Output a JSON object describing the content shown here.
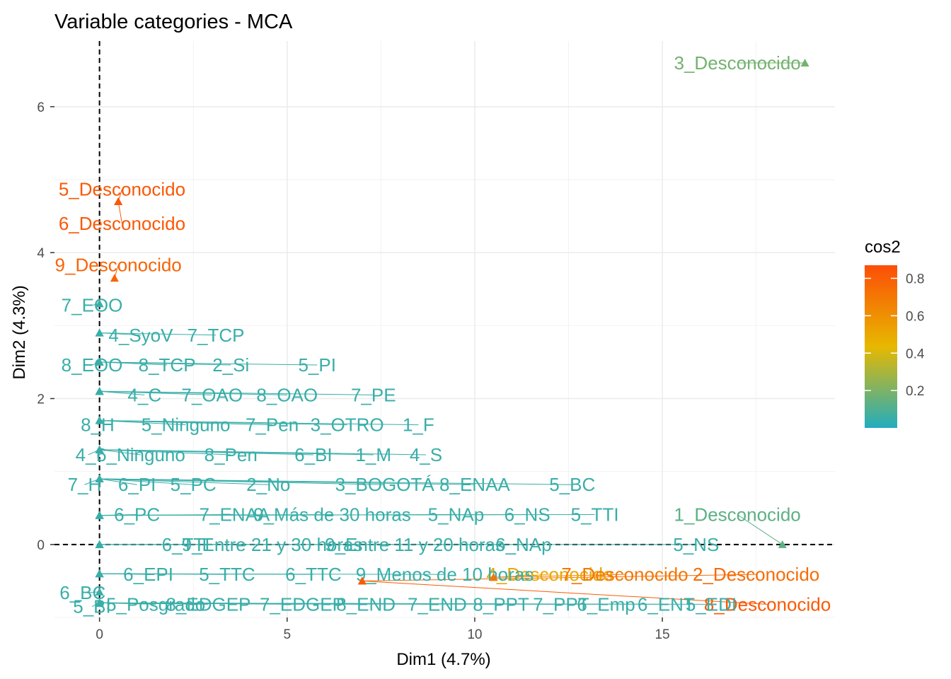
{
  "chart_data": {
    "type": "scatter",
    "title": "Variable categories - MCA",
    "xlabel": "Dim1 (4.7%)",
    "ylabel": "Dim2 (4.3%)",
    "xlim": [
      -1.2,
      19.6
    ],
    "ylim": [
      -1.0,
      6.9
    ],
    "x_ticks": [
      0,
      5,
      10,
      15
    ],
    "y_ticks": [
      0,
      2,
      4,
      6
    ],
    "grid": true,
    "reference_lines": {
      "x": 0,
      "y": 0,
      "style": "dashed"
    },
    "arrows": true,
    "legend": {
      "title": "cos2",
      "placement": "right",
      "range": [
        0.0,
        0.87
      ],
      "ticks": [
        0.2,
        0.4,
        0.6,
        0.8
      ],
      "colors": [
        "#22adbe",
        "#e7b800",
        "#fc4e07"
      ]
    },
    "points": [
      {
        "label": "3_Desconocido",
        "x": 18.8,
        "y": 6.6,
        "cos2": 0.18,
        "lx": 17.0,
        "ly": 6.6
      },
      {
        "label": "5_Desconocido",
        "x": 0.5,
        "y": 4.7,
        "cos2": 0.83,
        "lx": 0.6,
        "ly": 4.87
      },
      {
        "label": "6_Desconocido",
        "x": 0.5,
        "y": 4.7,
        "cos2": 0.83,
        "lx": 0.6,
        "ly": 4.4
      },
      {
        "label": "9_Desconocido",
        "x": 0.4,
        "y": 3.65,
        "cos2": 0.78,
        "lx": 0.5,
        "ly": 3.83
      },
      {
        "label": "1_Desconocido",
        "x": 18.2,
        "y": 0.0,
        "cos2": 0.13,
        "lx": 17.0,
        "ly": 0.41
      },
      {
        "label": "4_Desconocido",
        "x": 10.5,
        "y": -0.45,
        "cos2": 0.5,
        "lx": 12.0,
        "ly": -0.41
      },
      {
        "label": "7_Desconocido",
        "x": 10.5,
        "y": -0.45,
        "cos2": 0.7,
        "lx": 14.0,
        "ly": -0.41
      },
      {
        "label": "2_Desconocido",
        "x": 7.0,
        "y": -0.5,
        "cos2": 0.75,
        "lx": 17.5,
        "ly": -0.41
      },
      {
        "label": "8_Desconocido",
        "x": 7.0,
        "y": -0.5,
        "cos2": 0.82,
        "lx": 17.8,
        "ly": -0.82
      },
      {
        "label": "7_EOO",
        "x": 0.0,
        "y": 3.3,
        "cos2": 0.05,
        "lx": -0.2,
        "ly": 3.28
      },
      {
        "label": "4_SyoV",
        "x": 0.0,
        "y": 2.9,
        "cos2": 0.05,
        "lx": 1.1,
        "ly": 2.87
      },
      {
        "label": "7_TCP",
        "x": 0.0,
        "y": 2.9,
        "cos2": 0.05,
        "lx": 3.1,
        "ly": 2.87
      },
      {
        "label": "8_EOO",
        "x": 0.0,
        "y": 2.5,
        "cos2": 0.05,
        "lx": -0.2,
        "ly": 2.46
      },
      {
        "label": "8_TCP",
        "x": 0.0,
        "y": 2.5,
        "cos2": 0.05,
        "lx": 1.8,
        "ly": 2.46
      },
      {
        "label": "2_Si",
        "x": 0.0,
        "y": 2.5,
        "cos2": 0.05,
        "lx": 3.5,
        "ly": 2.46
      },
      {
        "label": "5_PI",
        "x": 0.0,
        "y": 2.5,
        "cos2": 0.05,
        "lx": 5.8,
        "ly": 2.46
      },
      {
        "label": "4_C",
        "x": 0.0,
        "y": 2.1,
        "cos2": 0.05,
        "lx": 1.2,
        "ly": 2.05
      },
      {
        "label": "7_OAO",
        "x": 0.0,
        "y": 2.1,
        "cos2": 0.05,
        "lx": 3.0,
        "ly": 2.05
      },
      {
        "label": "8_OAO",
        "x": 0.0,
        "y": 2.1,
        "cos2": 0.05,
        "lx": 5.0,
        "ly": 2.05
      },
      {
        "label": "7_PE",
        "x": 0.0,
        "y": 2.1,
        "cos2": 0.05,
        "lx": 7.3,
        "ly": 2.05
      },
      {
        "label": "8_H",
        "x": 0.0,
        "y": 1.7,
        "cos2": 0.05,
        "lx": -0.05,
        "ly": 1.64
      },
      {
        "label": "5_Ninguno",
        "x": 0.0,
        "y": 1.7,
        "cos2": 0.05,
        "lx": 2.3,
        "ly": 1.64
      },
      {
        "label": "7_Pen",
        "x": 0.0,
        "y": 1.7,
        "cos2": 0.05,
        "lx": 4.6,
        "ly": 1.64
      },
      {
        "label": "3_OTRO",
        "x": 0.0,
        "y": 1.7,
        "cos2": 0.05,
        "lx": 6.6,
        "ly": 1.64
      },
      {
        "label": "1_F",
        "x": 0.0,
        "y": 1.7,
        "cos2": 0.05,
        "lx": 8.5,
        "ly": 1.64
      },
      {
        "label": "4_I",
        "x": 0.0,
        "y": 1.3,
        "cos2": 0.05,
        "lx": -0.3,
        "ly": 1.23
      },
      {
        "label": "6_Ninguno",
        "x": 0.0,
        "y": 1.3,
        "cos2": 0.05,
        "lx": 1.1,
        "ly": 1.23
      },
      {
        "label": "8_Pen",
        "x": 0.0,
        "y": 1.3,
        "cos2": 0.05,
        "lx": 3.5,
        "ly": 1.23
      },
      {
        "label": "6_BI",
        "x": 0.0,
        "y": 1.3,
        "cos2": 0.05,
        "lx": 5.7,
        "ly": 1.23
      },
      {
        "label": "1_M",
        "x": 0.0,
        "y": 1.3,
        "cos2": 0.05,
        "lx": 7.3,
        "ly": 1.23
      },
      {
        "label": "4_S",
        "x": 0.0,
        "y": 1.3,
        "cos2": 0.05,
        "lx": 8.7,
        "ly": 1.23
      },
      {
        "label": "7_H",
        "x": 0.0,
        "y": 0.9,
        "cos2": 0.05,
        "lx": -0.4,
        "ly": 0.82
      },
      {
        "label": "6_PI",
        "x": 0.0,
        "y": 0.9,
        "cos2": 0.05,
        "lx": 1.0,
        "ly": 0.82
      },
      {
        "label": "5_PC",
        "x": 0.0,
        "y": 0.9,
        "cos2": 0.05,
        "lx": 2.5,
        "ly": 0.82
      },
      {
        "label": "2_No",
        "x": 0.0,
        "y": 0.9,
        "cos2": 0.05,
        "lx": 4.5,
        "ly": 0.82
      },
      {
        "label": "3_BOGOTÁ",
        "x": 0.0,
        "y": 0.9,
        "cos2": 0.05,
        "lx": 7.6,
        "ly": 0.82
      },
      {
        "label": "8_ENAA",
        "x": 0.0,
        "y": 0.9,
        "cos2": 0.05,
        "lx": 10.0,
        "ly": 0.82
      },
      {
        "label": "5_BC",
        "x": 0.0,
        "y": 0.9,
        "cos2": 0.05,
        "lx": 12.6,
        "ly": 0.82
      },
      {
        "label": "6_PC",
        "x": 0.0,
        "y": 0.4,
        "cos2": 0.05,
        "lx": 1.0,
        "ly": 0.41
      },
      {
        "label": "7_ENAA",
        "x": 0.0,
        "y": 0.4,
        "cos2": 0.05,
        "lx": 3.6,
        "ly": 0.41
      },
      {
        "label": "9_Más de 30 horas",
        "x": 0.0,
        "y": 0.4,
        "cos2": 0.05,
        "lx": 6.2,
        "ly": 0.41
      },
      {
        "label": "5_NAp",
        "x": 0.0,
        "y": 0.4,
        "cos2": 0.05,
        "lx": 9.5,
        "ly": 0.41
      },
      {
        "label": "6_NS",
        "x": 0.0,
        "y": 0.4,
        "cos2": 0.05,
        "lx": 11.4,
        "ly": 0.41
      },
      {
        "label": "5_TTI",
        "x": 0.0,
        "y": 0.4,
        "cos2": 0.05,
        "lx": 13.2,
        "ly": 0.41
      },
      {
        "label": "6_TTI",
        "x": 0.0,
        "y": 0.0,
        "cos2": 0.05,
        "lx": 2.3,
        "ly": 0.0
      },
      {
        "label": "9_Entre 21 y 30 horas",
        "x": 0.0,
        "y": 0.0,
        "cos2": 0.05,
        "lx": 4.6,
        "ly": 0.0
      },
      {
        "label": "9_Entre 11 y 20 horas",
        "x": 0.0,
        "y": 0.0,
        "cos2": 0.05,
        "lx": 8.4,
        "ly": 0.0
      },
      {
        "label": "6_NAp",
        "x": 0.0,
        "y": 0.0,
        "cos2": 0.05,
        "lx": 11.3,
        "ly": 0.0
      },
      {
        "label": "5_NS",
        "x": 0.0,
        "y": 0.0,
        "cos2": 0.05,
        "lx": 15.9,
        "ly": 0.0
      },
      {
        "label": "6_EPI",
        "x": 0.0,
        "y": -0.4,
        "cos2": 0.05,
        "lx": 1.3,
        "ly": -0.41
      },
      {
        "label": "5_TTC",
        "x": 0.0,
        "y": -0.4,
        "cos2": 0.05,
        "lx": 3.4,
        "ly": -0.41
      },
      {
        "label": "6_TTC",
        "x": 0.0,
        "y": -0.4,
        "cos2": 0.05,
        "lx": 5.7,
        "ly": -0.41
      },
      {
        "label": "9_Menos de 10 horas",
        "x": 0.0,
        "y": -0.4,
        "cos2": 0.05,
        "lx": 9.2,
        "ly": -0.41
      },
      {
        "label": "6_BC",
        "x": 0.0,
        "y": -0.65,
        "cos2": 0.05,
        "lx": -0.45,
        "ly": -0.66
      },
      {
        "label": "5_BI",
        "x": 0.0,
        "y": -0.8,
        "cos2": 0.05,
        "lx": -0.2,
        "ly": -0.85
      },
      {
        "label": "5_Posgrado",
        "x": 0.0,
        "y": -0.8,
        "cos2": 0.05,
        "lx": 1.5,
        "ly": -0.82
      },
      {
        "label": "8_EDGEP",
        "x": 0.0,
        "y": -0.8,
        "cos2": 0.05,
        "lx": 2.9,
        "ly": -0.82
      },
      {
        "label": "7_EDGEP",
        "x": 0.0,
        "y": -0.8,
        "cos2": 0.05,
        "lx": 5.4,
        "ly": -0.82
      },
      {
        "label": "8_END",
        "x": 0.0,
        "y": -0.8,
        "cos2": 0.05,
        "lx": 7.1,
        "ly": -0.82
      },
      {
        "label": "7_END",
        "x": 0.0,
        "y": -0.8,
        "cos2": 0.05,
        "lx": 9.0,
        "ly": -0.82
      },
      {
        "label": "8_PPT",
        "x": 0.0,
        "y": -0.8,
        "cos2": 0.05,
        "lx": 10.7,
        "ly": -0.82
      },
      {
        "label": "7_PPT",
        "x": 0.0,
        "y": -0.8,
        "cos2": 0.05,
        "lx": 12.3,
        "ly": -0.82
      },
      {
        "label": "6_Emp",
        "x": 0.0,
        "y": -0.8,
        "cos2": 0.05,
        "lx": 13.5,
        "ly": -0.82
      },
      {
        "label": "6_ENT",
        "x": 0.0,
        "y": -0.8,
        "cos2": 0.05,
        "lx": 15.1,
        "ly": -0.82
      },
      {
        "label": "5_EDI",
        "x": 0.0,
        "y": -0.8,
        "cos2": 0.05,
        "lx": 16.3,
        "ly": -0.82
      }
    ]
  }
}
